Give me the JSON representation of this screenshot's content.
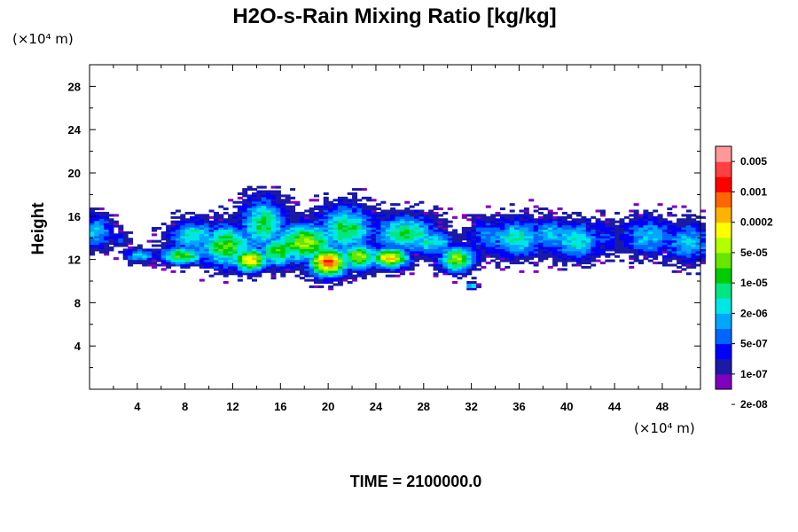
{
  "chart_data": {
    "type": "heatmap",
    "title": "H2O-s-Rain Mixing Ratio [kg/kg]",
    "ylabel": "Height",
    "xlabel": "",
    "x_unit": "(×10⁴ m)",
    "y_unit": "(×10⁴ m)",
    "xlim": [
      0,
      51.2
    ],
    "ylim": [
      0,
      30
    ],
    "x_ticks": [
      "4",
      "8",
      "12",
      "16",
      "20",
      "24",
      "28",
      "32",
      "36",
      "40",
      "44",
      "48"
    ],
    "y_ticks": [
      "4",
      "8",
      "12",
      "16",
      "20",
      "24",
      "28"
    ],
    "colorbar": {
      "labels": [
        "0.005",
        "0.001",
        "0.0002",
        "5e-05",
        "1e-05",
        "2e-06",
        "5e-07",
        "1e-07",
        "2e-08"
      ],
      "colors": [
        "#7f00bf",
        "#1a1aa6",
        "#0000ff",
        "#0066ff",
        "#00a6ff",
        "#00e6e6",
        "#00e680",
        "#00cc00",
        "#66e600",
        "#b3ff00",
        "#ffff00",
        "#ffb300",
        "#ff6600",
        "#ff0000",
        "#ff4040",
        "#ff9999"
      ]
    },
    "cloud_band": {
      "y_range": [
        10.5,
        18
      ],
      "core_y": 12,
      "max_level_x": 20
    },
    "footer": "TIME = 2100000.0"
  }
}
